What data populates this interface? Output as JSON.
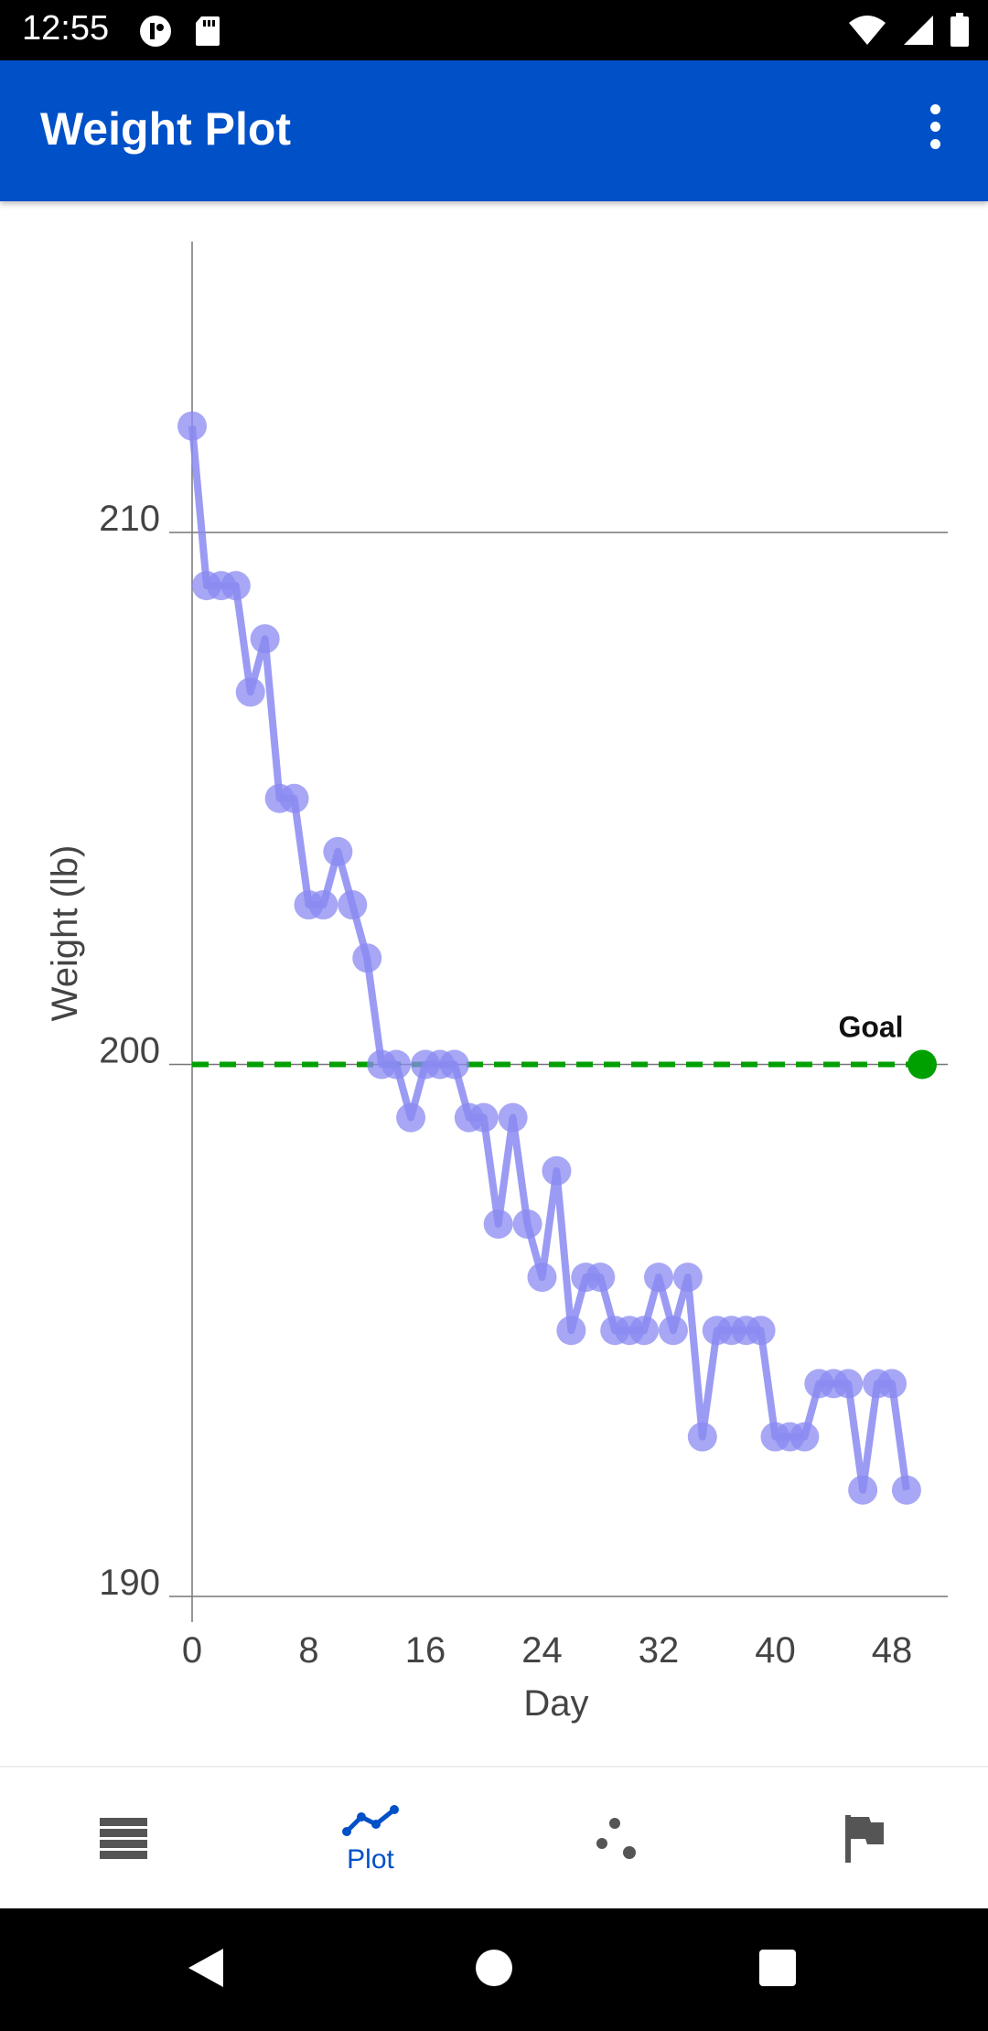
{
  "status_bar": {
    "time": "12:55",
    "left_icons": [
      "vpn-icon",
      "sd-card-icon"
    ],
    "right_icons": [
      "wifi-icon",
      "cell-signal-icon",
      "battery-icon"
    ]
  },
  "app_bar": {
    "title": "Weight Plot",
    "menu_icon": "overflow-menu-icon"
  },
  "chart_data": {
    "type": "line",
    "xlabel": "Day",
    "ylabel": "Weight (lb)",
    "xlim": [
      0,
      50
    ],
    "ylim": [
      190,
      215.5
    ],
    "x_ticks": [
      0,
      8,
      16,
      24,
      32,
      40,
      48
    ],
    "y_ticks": [
      190,
      200,
      210
    ],
    "grid": "horizontal",
    "series": [
      {
        "color": "#8A8AF2",
        "x": [
          0,
          1,
          2,
          3,
          4,
          5,
          6,
          7,
          8,
          9,
          10,
          11,
          12,
          13,
          14,
          15,
          16,
          17,
          18,
          19,
          20,
          21,
          22,
          23,
          24,
          25,
          26,
          27,
          28,
          29,
          30,
          31,
          32,
          33,
          34,
          35,
          36,
          37,
          38,
          39,
          40,
          41,
          42,
          43,
          44,
          45,
          46,
          47,
          48,
          49
        ],
        "y": [
          212,
          209,
          209,
          209,
          207,
          208,
          205,
          205,
          203,
          203,
          204,
          203,
          202,
          200,
          200,
          199,
          200,
          200,
          200,
          199,
          199,
          197,
          199,
          197,
          196,
          198,
          195,
          196,
          196,
          195,
          195,
          195,
          196,
          195,
          196,
          193,
          195,
          195,
          195,
          195,
          193,
          193,
          193,
          194,
          194,
          194,
          192,
          194,
          194,
          192
        ]
      }
    ],
    "goal": {
      "label": "Goal",
      "value": 200,
      "color": "#00A000"
    }
  },
  "bottom_nav": {
    "items": [
      {
        "icon": "list-icon",
        "label": ""
      },
      {
        "icon": "line-chart-icon",
        "label": "Plot",
        "active": true
      },
      {
        "icon": "scatter-icon",
        "label": ""
      },
      {
        "icon": "flag-icon",
        "label": ""
      }
    ],
    "active_color": "#0050C8",
    "inactive_color": "#555555"
  },
  "system_nav": {
    "buttons": [
      "back-icon",
      "home-icon",
      "recents-icon"
    ]
  }
}
